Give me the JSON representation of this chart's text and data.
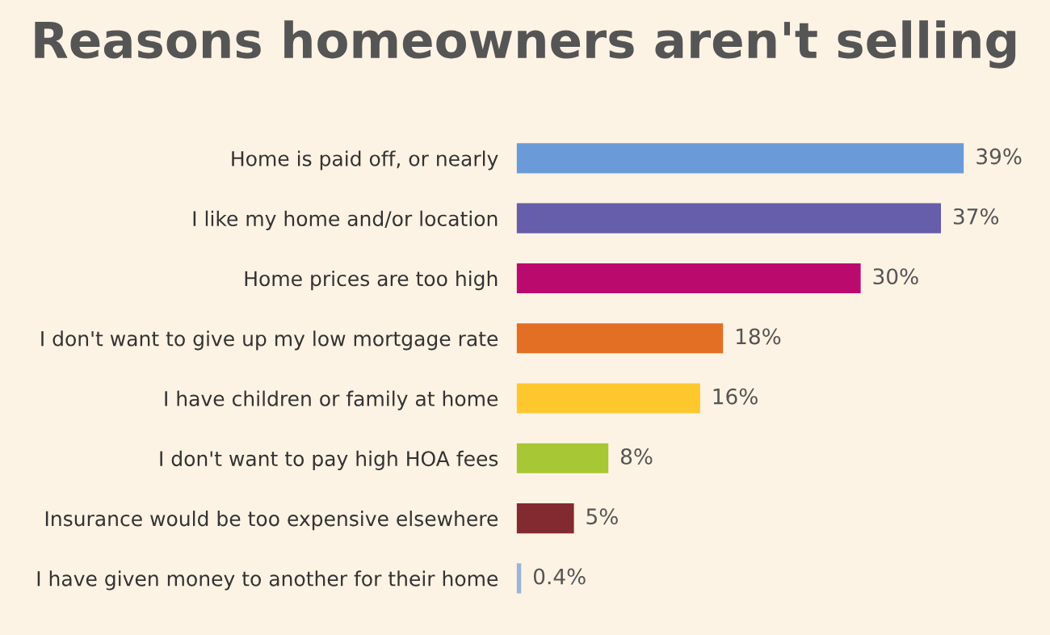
{
  "chart_data": {
    "type": "bar",
    "orientation": "horizontal",
    "title": "Reasons homeowners aren't selling",
    "categories": [
      "Home is paid off, or nearly",
      "I like my home and/or location",
      "Home prices are too high",
      "I don't want to give up my low mortgage rate",
      "I have children or family at home",
      "I don't want to pay high HOA fees",
      "Insurance would be too expensive elsewhere",
      "I have given money to another for their home"
    ],
    "values": [
      39,
      37,
      30,
      18,
      16,
      8,
      5,
      0.4
    ],
    "value_labels": [
      "39%",
      "37%",
      "30%",
      "18%",
      "16%",
      "8%",
      "5%",
      "0.4%"
    ],
    "colors": [
      "#6a9bd8",
      "#665dab",
      "#bb0a6e",
      "#e36f25",
      "#fec72e",
      "#a7c734",
      "#832a30",
      "#9ab4d9"
    ],
    "grid": false,
    "legend": false
  }
}
